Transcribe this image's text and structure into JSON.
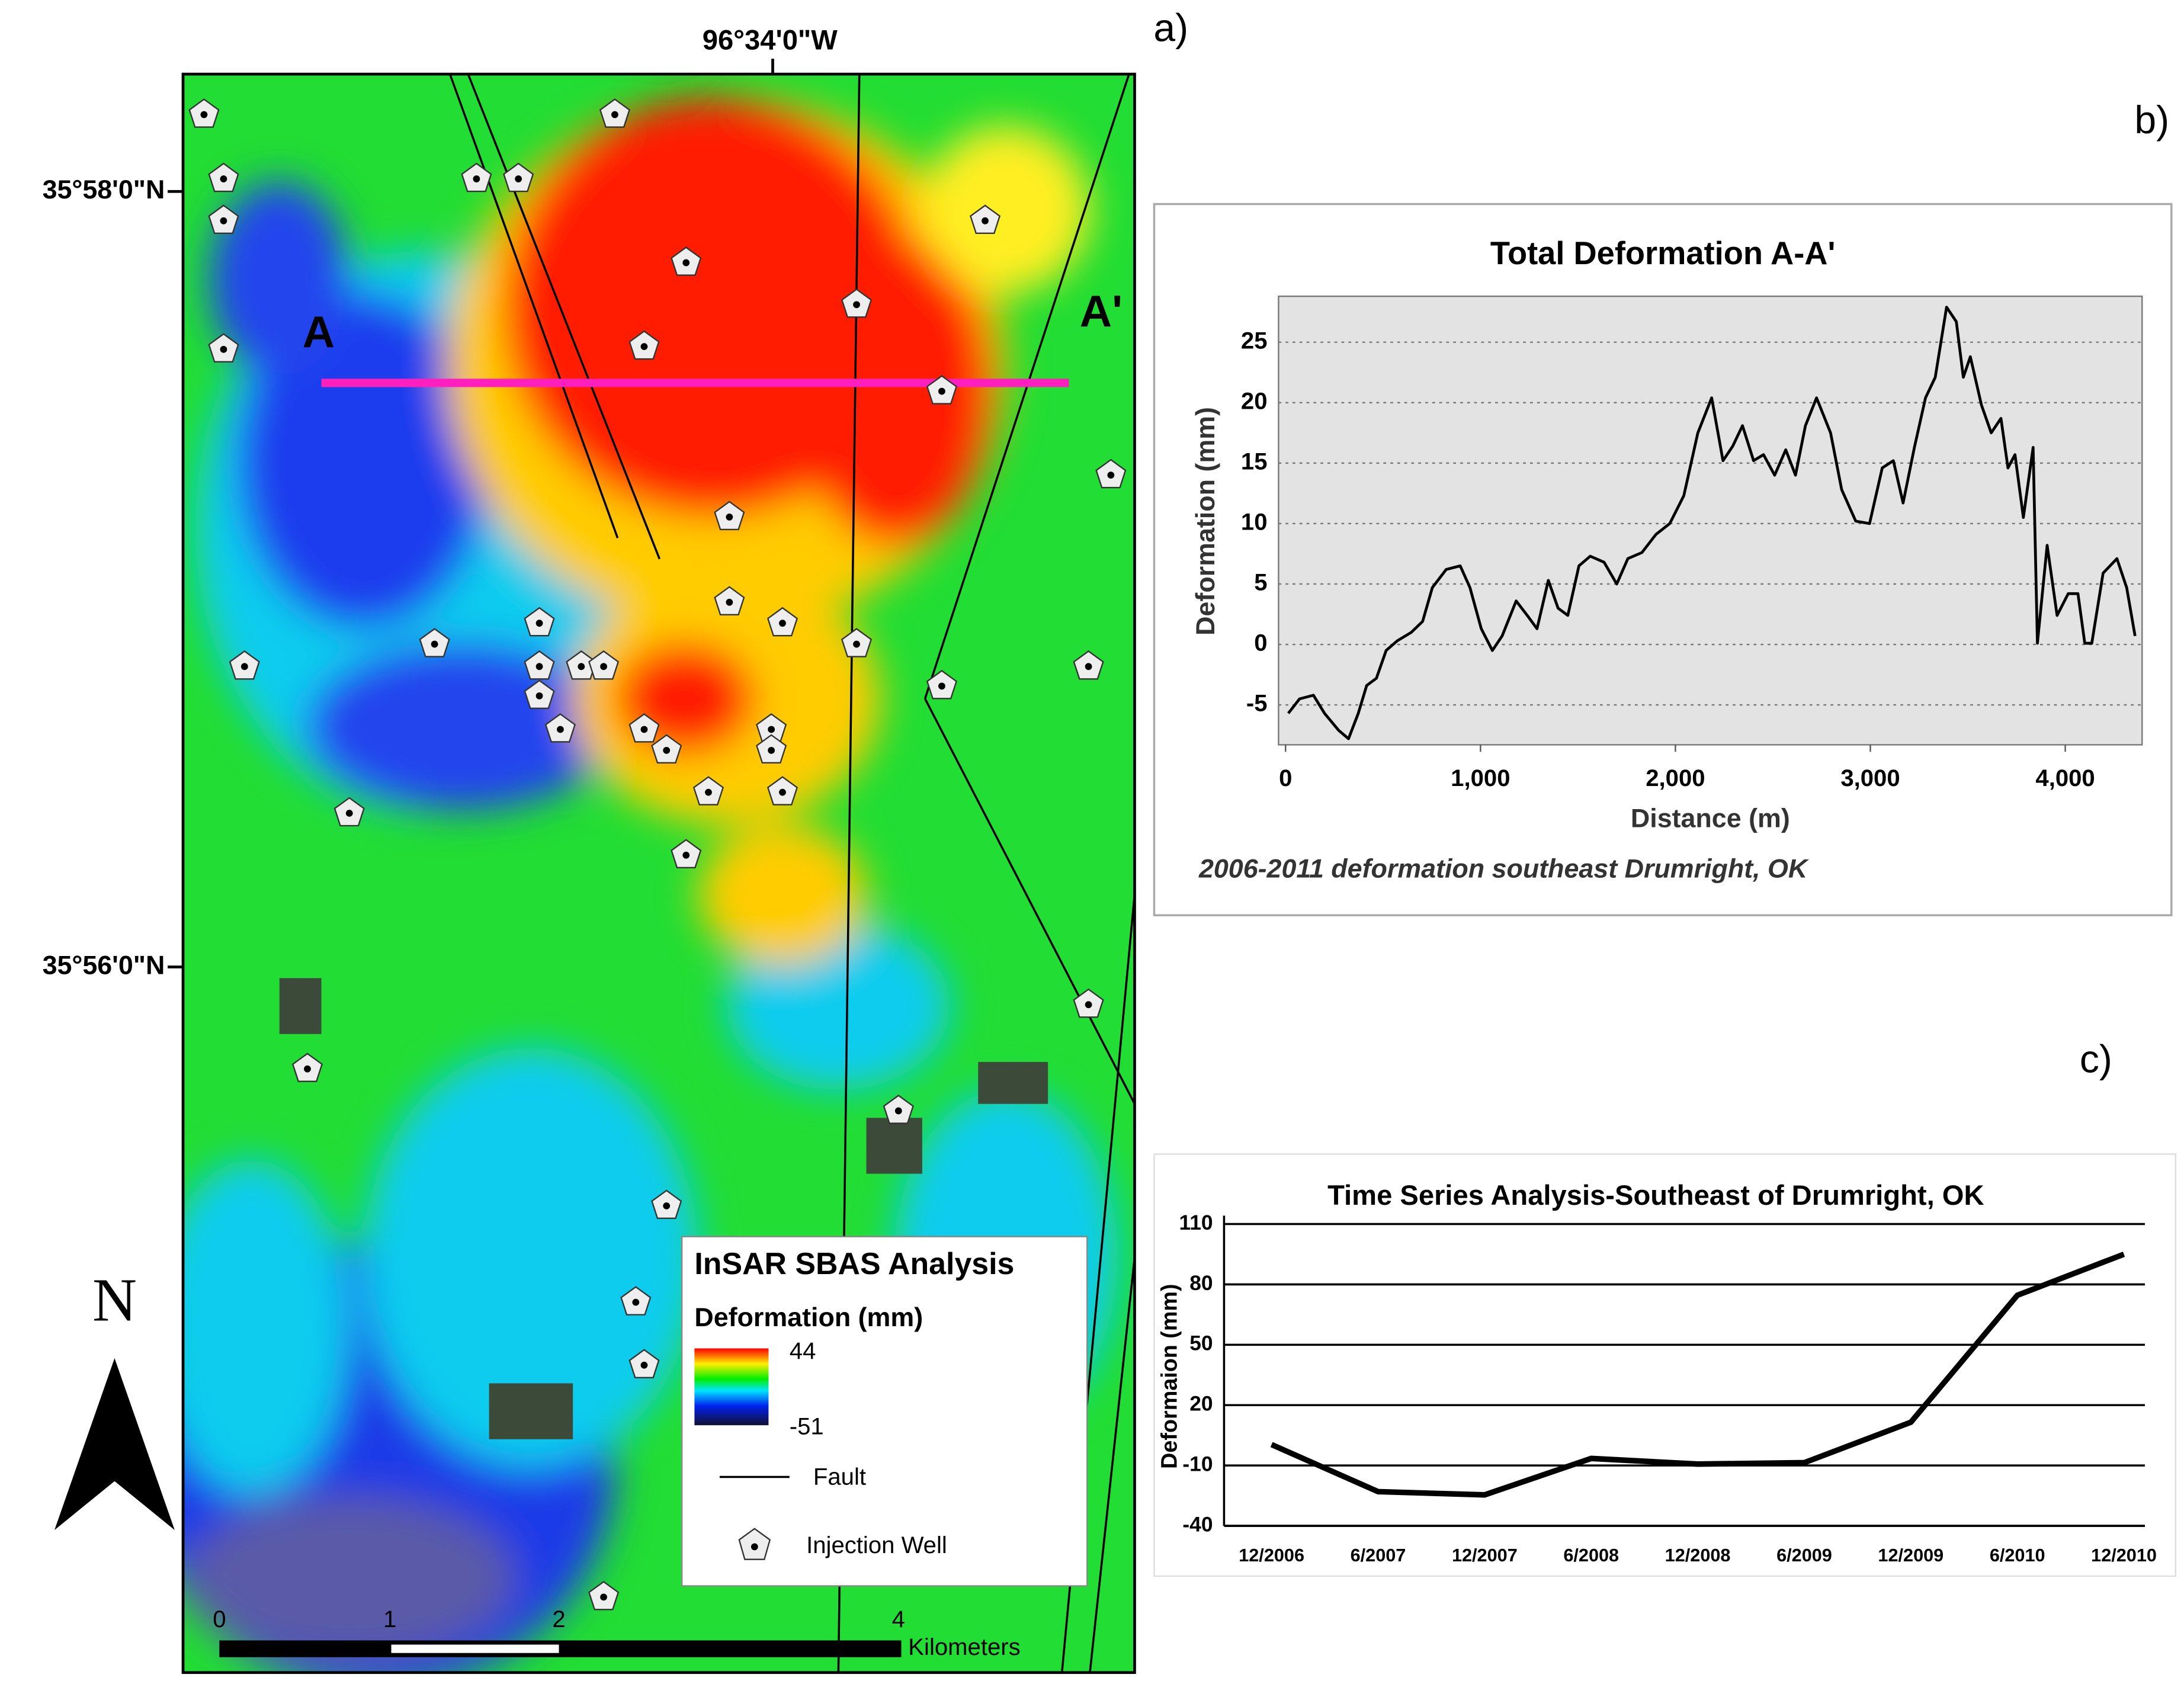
{
  "map": {
    "panel_label": "a)",
    "lon_label": "96°34'0\"W",
    "lat_labels": [
      "35°58'0\"N",
      "35°56'0\"N"
    ],
    "profile_start": "A",
    "profile_end": "A'",
    "north": "N",
    "legend": {
      "title": "InSAR SBAS Analysis",
      "subtitle": "Deformation (mm)",
      "max": "44",
      "min": "-51",
      "fault": "Fault",
      "well": "Injection Well"
    },
    "scale_labels": [
      "0",
      "1",
      "2",
      "4"
    ],
    "scale_unit": "Kilometers"
  },
  "chart_data": [
    {
      "type": "line",
      "panel_label": "b)",
      "title": "Total Deformation A-A'",
      "x_label": "Distance (m)",
      "y_label": "Deformation (mm)",
      "caption": "2006-2011 deformation southeast Drumright, OK",
      "color": "#000000",
      "grid": true,
      "xlim": [
        -36,
        4394
      ],
      "ylim": [
        -8.3,
        28.8
      ],
      "xticks": [
        0,
        {
          "value": 1000,
          "label": "1,000"
        },
        {
          "value": 2000,
          "label": "2,000"
        },
        {
          "value": 3000,
          "label": "3,000"
        },
        {
          "value": 4000,
          "label": "4,000"
        }
      ],
      "yticks": [
        -5,
        0,
        5,
        10,
        15,
        20,
        25
      ],
      "x": [
        14,
        72,
        143,
        200,
        272,
        323,
        373,
        416,
        466,
        516,
        573,
        645,
        703,
        753,
        824,
        896,
        946,
        1004,
        1061,
        1111,
        1183,
        1240,
        1290,
        1348,
        1398,
        1448,
        1505,
        1563,
        1634,
        1699,
        1756,
        1828,
        1900,
        1971,
        2043,
        2115,
        2186,
        2244,
        2294,
        2344,
        2401,
        2452,
        2509,
        2566,
        2616,
        2667,
        2724,
        2796,
        2853,
        2925,
        2996,
        3061,
        3118,
        3168,
        3226,
        3283,
        3333,
        3391,
        3441,
        3477,
        3513,
        3570,
        3620,
        3670,
        3706,
        3742,
        3785,
        3835,
        3857,
        3907,
        3958,
        4015,
        4065,
        4100,
        4136,
        4194,
        4265,
        4315,
        4358
      ],
      "values": [
        -5.7,
        -4.5,
        -4.2,
        -5.7,
        -7.1,
        -7.8,
        -5.7,
        -3.4,
        -2.8,
        -0.5,
        0.3,
        1.0,
        1.9,
        4.7,
        6.2,
        6.5,
        4.7,
        1.3,
        -0.5,
        0.7,
        3.6,
        2.4,
        1.3,
        5.3,
        3.0,
        2.4,
        6.5,
        7.3,
        6.8,
        5.0,
        7.1,
        7.6,
        9.1,
        10.0,
        12.3,
        17.5,
        20.4,
        15.2,
        16.4,
        18.1,
        15.2,
        15.7,
        14.0,
        16.1,
        14.0,
        18.1,
        20.4,
        17.5,
        12.8,
        10.2,
        10.0,
        14.6,
        15.2,
        11.7,
        16.3,
        20.4,
        22.1,
        27.9,
        26.7,
        22.1,
        23.8,
        19.8,
        17.5,
        18.7,
        14.6,
        15.7,
        10.5,
        16.3,
        0.1,
        8.2,
        2.4,
        4.2,
        4.2,
        0.1,
        0.1,
        5.9,
        7.1,
        4.7,
        0.7
      ]
    },
    {
      "type": "line",
      "panel_label": "c)",
      "title": "Time Series Analysis-Southeast of Drumright, OK",
      "y_label": "Deformaion (mm)",
      "color": "#000000",
      "grid": true,
      "ylim": [
        -40,
        110
      ],
      "yticks": [
        110,
        80,
        50,
        20,
        -10,
        -40
      ],
      "categories": [
        "12/2006",
        "6/2007",
        "12/2007",
        "6/2008",
        "12/2008",
        "6/2009",
        "12/2009",
        "6/2010",
        "12/2010"
      ],
      "values": [
        0.4,
        -23,
        -24.6,
        -6.5,
        -9.3,
        -8.6,
        11.5,
        74.6,
        95
      ]
    }
  ]
}
